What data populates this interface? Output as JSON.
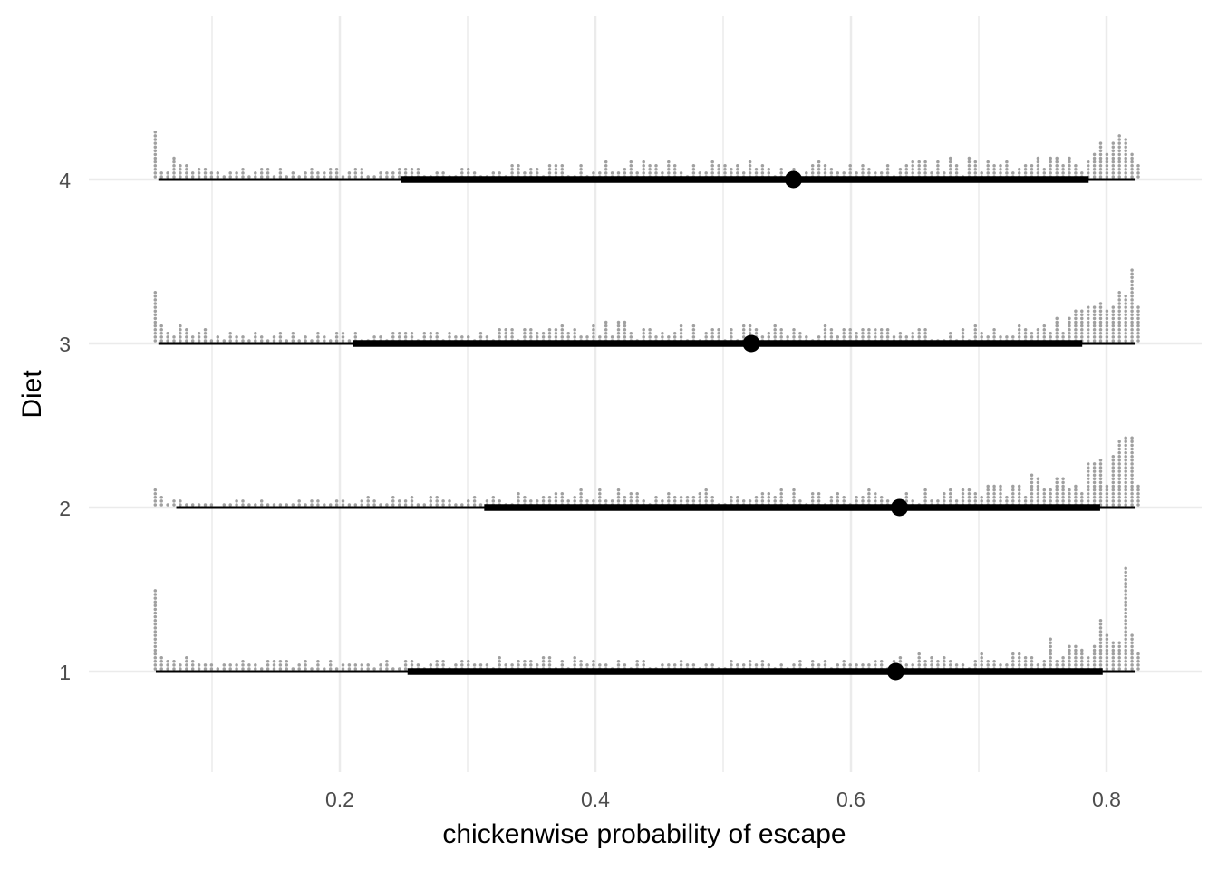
{
  "chart_data": {
    "type": "dotplot-interval",
    "xlabel": "chickenwise probability of escape",
    "ylabel": "Diet",
    "xlim": [
      0.046,
      0.83
    ],
    "x_ticks": [
      "0.2",
      "0.4",
      "0.6",
      "0.8"
    ],
    "x_tick_values": [
      0.2,
      0.4,
      0.6,
      0.8
    ],
    "x_minor_values": [
      0.1,
      0.3,
      0.5,
      0.7
    ],
    "grid": true,
    "dot_color": "#a0a0a0",
    "interval_color": "#000000",
    "categories": [
      "1",
      "2",
      "3",
      "4"
    ],
    "series": [
      {
        "name": "1",
        "median": 0.635,
        "interval_66": [
          0.253,
          0.797
        ],
        "interval_95": [
          0.056,
          0.822
        ],
        "dot_profile": [
          [
            0.055,
            22
          ],
          [
            0.06,
            3
          ],
          [
            0.1,
            2
          ],
          [
            0.2,
            2
          ],
          [
            0.3,
            2
          ],
          [
            0.34,
            3
          ],
          [
            0.45,
            2
          ],
          [
            0.55,
            2
          ],
          [
            0.62,
            2
          ],
          [
            0.65,
            3
          ],
          [
            0.7,
            3
          ],
          [
            0.73,
            5
          ],
          [
            0.76,
            6
          ],
          [
            0.79,
            8
          ],
          [
            0.81,
            13
          ],
          [
            0.815,
            17
          ],
          [
            0.82,
            12
          ],
          [
            0.825,
            8
          ]
        ]
      },
      {
        "name": "2",
        "median": 0.638,
        "interval_66": [
          0.313,
          0.795
        ],
        "interval_95": [
          0.072,
          0.822
        ],
        "dot_profile": [
          [
            0.055,
            5
          ],
          [
            0.06,
            2
          ],
          [
            0.1,
            1
          ],
          [
            0.2,
            2
          ],
          [
            0.3,
            2
          ],
          [
            0.4,
            3
          ],
          [
            0.5,
            3
          ],
          [
            0.6,
            3
          ],
          [
            0.65,
            3
          ],
          [
            0.7,
            4
          ],
          [
            0.74,
            6
          ],
          [
            0.77,
            7
          ],
          [
            0.79,
            8
          ],
          [
            0.81,
            11
          ],
          [
            0.82,
            15
          ],
          [
            0.825,
            10
          ]
        ]
      },
      {
        "name": "3",
        "median": 0.522,
        "interval_66": [
          0.21,
          0.781
        ],
        "interval_95": [
          0.058,
          0.822
        ],
        "dot_profile": [
          [
            0.055,
            14
          ],
          [
            0.06,
            4
          ],
          [
            0.1,
            2
          ],
          [
            0.2,
            2
          ],
          [
            0.3,
            2
          ],
          [
            0.35,
            3
          ],
          [
            0.4,
            4
          ],
          [
            0.5,
            3
          ],
          [
            0.6,
            3
          ],
          [
            0.7,
            3
          ],
          [
            0.75,
            4
          ],
          [
            0.78,
            6
          ],
          [
            0.8,
            7
          ],
          [
            0.815,
            10
          ],
          [
            0.82,
            13
          ],
          [
            0.825,
            8
          ]
        ]
      },
      {
        "name": "4",
        "median": 0.555,
        "interval_66": [
          0.248,
          0.786
        ],
        "interval_95": [
          0.058,
          0.822
        ],
        "dot_profile": [
          [
            0.055,
            13
          ],
          [
            0.06,
            4
          ],
          [
            0.1,
            2
          ],
          [
            0.2,
            2
          ],
          [
            0.3,
            2
          ],
          [
            0.4,
            3
          ],
          [
            0.45,
            4
          ],
          [
            0.55,
            3
          ],
          [
            0.65,
            3
          ],
          [
            0.7,
            4
          ],
          [
            0.75,
            5
          ],
          [
            0.78,
            6
          ],
          [
            0.8,
            8
          ],
          [
            0.815,
            9
          ],
          [
            0.82,
            9
          ],
          [
            0.825,
            6
          ]
        ]
      }
    ]
  }
}
